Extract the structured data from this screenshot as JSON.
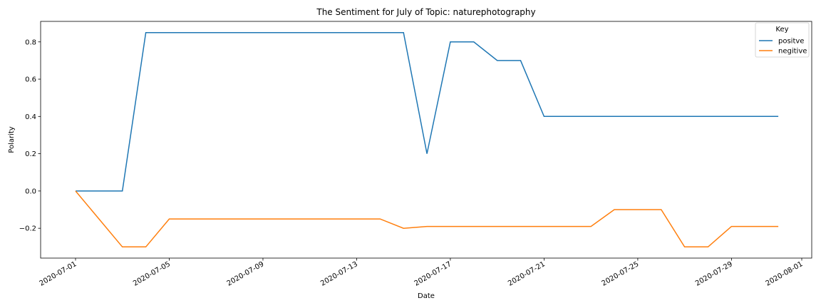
{
  "chart_data": {
    "type": "line",
    "title": "The Sentiment for July of Topic: naturephotography",
    "xlabel": "Date",
    "ylabel": "Polarity",
    "x_tick_labels": [
      "2020-07-01",
      "2020-07-05",
      "2020-07-09",
      "2020-07-13",
      "2020-07-17",
      "2020-07-21",
      "2020-07-25",
      "2020-07-29",
      "2020-08-01"
    ],
    "x_ticks": [
      "2020-07-01",
      "2020-07-05",
      "2020-07-09",
      "2020-07-13",
      "2020-07-17",
      "2020-07-21",
      "2020-07-25",
      "2020-07-29",
      "2020-08-01"
    ],
    "y_tick_labels": [
      "−0.2",
      "0.0",
      "0.2",
      "0.4",
      "0.6",
      "0.8"
    ],
    "y_ticks": [
      -0.2,
      0.0,
      0.2,
      0.4,
      0.6,
      0.8
    ],
    "xlim": [
      "2020-07-01",
      "2020-08-01"
    ],
    "ylim": [
      -0.36,
      0.91
    ],
    "grid": false,
    "legend": {
      "title": "Key",
      "placement": "top-right"
    },
    "x": [
      "2020-07-01",
      "2020-07-02",
      "2020-07-03",
      "2020-07-04",
      "2020-07-05",
      "2020-07-06",
      "2020-07-07",
      "2020-07-08",
      "2020-07-09",
      "2020-07-10",
      "2020-07-11",
      "2020-07-12",
      "2020-07-13",
      "2020-07-14",
      "2020-07-15",
      "2020-07-16",
      "2020-07-17",
      "2020-07-18",
      "2020-07-19",
      "2020-07-20",
      "2020-07-21",
      "2020-07-22",
      "2020-07-23",
      "2020-07-24",
      "2020-07-25",
      "2020-07-26",
      "2020-07-27",
      "2020-07-28",
      "2020-07-29",
      "2020-07-30",
      "2020-07-31"
    ],
    "series": [
      {
        "name": "positve",
        "color": "#1f77b4",
        "values": [
          0.0,
          0.0,
          0.0,
          0.85,
          0.85,
          0.85,
          0.85,
          0.85,
          0.85,
          0.85,
          0.85,
          0.85,
          0.85,
          0.85,
          0.85,
          0.2,
          0.8,
          0.8,
          0.7,
          0.7,
          0.4,
          0.4,
          0.4,
          0.4,
          0.4,
          0.4,
          0.4,
          0.4,
          0.4,
          0.4,
          0.4
        ]
      },
      {
        "name": "negitive",
        "color": "#ff7f0e",
        "values": [
          0.0,
          -0.15,
          -0.3,
          -0.3,
          -0.15,
          -0.15,
          -0.15,
          -0.15,
          -0.15,
          -0.15,
          -0.15,
          -0.15,
          -0.15,
          -0.15,
          -0.2,
          -0.19,
          -0.19,
          -0.19,
          -0.19,
          -0.19,
          -0.19,
          -0.19,
          -0.19,
          -0.1,
          -0.1,
          -0.1,
          -0.3,
          -0.3,
          -0.19,
          -0.19,
          -0.19
        ]
      }
    ]
  }
}
